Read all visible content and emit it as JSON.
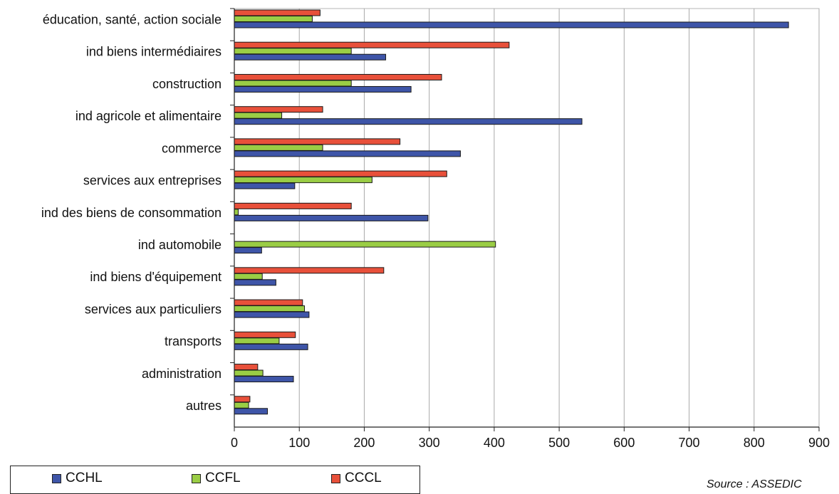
{
  "chart_data": {
    "type": "bar",
    "orientation": "horizontal",
    "categories": [
      "éducation, santé, action sociale",
      "ind biens intermédiaires",
      "construction",
      "ind agricole et alimentaire",
      "commerce",
      "services aux entreprises",
      "ind des biens de consommation",
      "ind automobile",
      "ind biens d'équipement",
      "services aux particuliers",
      "transports",
      "administration",
      "autres"
    ],
    "series": [
      {
        "name": "CCCL",
        "color": "#e8503a",
        "values": [
          132,
          423,
          319,
          136,
          255,
          327,
          180,
          0,
          230,
          105,
          94,
          36,
          24
        ]
      },
      {
        "name": "CCFL",
        "color": "#9acd45",
        "values": [
          120,
          180,
          180,
          73,
          136,
          212,
          6,
          402,
          43,
          108,
          69,
          44,
          22
        ]
      },
      {
        "name": "CCHL",
        "color": "#3e55a8",
        "values": [
          853,
          233,
          272,
          535,
          348,
          93,
          298,
          42,
          64,
          115,
          113,
          91,
          51
        ]
      }
    ],
    "legend_order": [
      "CCHL",
      "CCFL",
      "CCCL"
    ],
    "xlim": [
      0,
      900
    ],
    "xticks": [
      0,
      100,
      200,
      300,
      400,
      500,
      600,
      700,
      800,
      900
    ],
    "grid": "vertical",
    "legend": "bottom-left",
    "source": "Source : ASSEDIC"
  }
}
